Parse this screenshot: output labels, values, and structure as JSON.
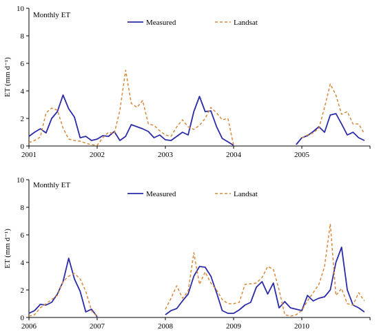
{
  "chart_data": [
    {
      "type": "line",
      "title": "Monthly ET",
      "ylabel": "ET (mm d⁻¹)",
      "xlabel": "",
      "ylim": [
        0,
        10
      ],
      "yticks": [
        0,
        2,
        4,
        6,
        8,
        10
      ],
      "xlim": [
        2001,
        2006
      ],
      "xticks": [
        "2001",
        "2002",
        "2003",
        "2004",
        "2005"
      ],
      "legend": "top-center",
      "series": [
        {
          "name": "Measured",
          "color": "#2a2aa8",
          "style": "solid",
          "segments": [
            [
              [
                2001.0,
                0.7
              ],
              [
                2001.083,
                1.0
              ],
              [
                2001.167,
                1.25
              ],
              [
                2001.25,
                0.95
              ],
              [
                2001.333,
                2.0
              ],
              [
                2001.417,
                2.5
              ],
              [
                2001.5,
                3.7
              ],
              [
                2001.583,
                2.7
              ],
              [
                2001.667,
                2.1
              ],
              [
                2001.75,
                0.6
              ],
              [
                2001.833,
                0.7
              ],
              [
                2001.917,
                0.4
              ],
              [
                2002.0,
                0.5
              ],
              [
                2002.083,
                0.75
              ],
              [
                2002.167,
                0.7
              ],
              [
                2002.25,
                1.05
              ],
              [
                2002.333,
                0.4
              ],
              [
                2002.417,
                0.7
              ],
              [
                2002.5,
                1.55
              ],
              [
                2002.583,
                1.4
              ],
              [
                2002.667,
                1.25
              ],
              [
                2002.75,
                1.05
              ],
              [
                2002.833,
                0.6
              ],
              [
                2002.917,
                0.8
              ],
              [
                2003.0,
                0.45
              ],
              [
                2003.083,
                0.4
              ],
              [
                2003.167,
                0.7
              ],
              [
                2003.25,
                1.0
              ],
              [
                2003.333,
                0.8
              ],
              [
                2003.417,
                2.5
              ],
              [
                2003.5,
                3.6
              ],
              [
                2003.583,
                2.5
              ],
              [
                2003.667,
                2.55
              ],
              [
                2003.75,
                1.4
              ],
              [
                2003.833,
                0.55
              ],
              [
                2003.917,
                0.3
              ],
              [
                2004.0,
                0.05
              ]
            ],
            [
              [
                2004.917,
                0.1
              ],
              [
                2005.0,
                0.6
              ],
              [
                2005.083,
                0.75
              ],
              [
                2005.167,
                1.05
              ],
              [
                2005.25,
                1.4
              ],
              [
                2005.333,
                1.0
              ],
              [
                2005.417,
                2.25
              ],
              [
                2005.5,
                2.35
              ],
              [
                2005.583,
                1.6
              ],
              [
                2005.667,
                0.8
              ],
              [
                2005.75,
                1.0
              ],
              [
                2005.833,
                0.6
              ],
              [
                2005.917,
                0.4
              ]
            ]
          ]
        },
        {
          "name": "Landsat",
          "color": "#d8883a",
          "style": "dashed",
          "segments": [
            [
              [
                2001.0,
                0.25
              ],
              [
                2001.083,
                0.4
              ],
              [
                2001.167,
                0.65
              ],
              [
                2001.25,
                2.4
              ],
              [
                2001.333,
                2.75
              ],
              [
                2001.417,
                2.6
              ],
              [
                2001.5,
                1.3
              ],
              [
                2001.583,
                0.5
              ],
              [
                2001.667,
                0.4
              ],
              [
                2001.75,
                0.35
              ],
              [
                2001.833,
                0.2
              ],
              [
                2001.917,
                0.1
              ],
              [
                2002.0,
                0.05
              ],
              [
                2002.083,
                0.6
              ],
              [
                2002.167,
                1.0
              ],
              [
                2002.25,
                0.9
              ],
              [
                2002.333,
                2.6
              ],
              [
                2002.417,
                5.5
              ],
              [
                2002.5,
                3.1
              ],
              [
                2002.583,
                2.8
              ],
              [
                2002.667,
                3.3
              ],
              [
                2002.75,
                1.6
              ],
              [
                2002.833,
                1.5
              ],
              [
                2002.917,
                1.1
              ],
              [
                2003.0,
                0.8
              ],
              [
                2003.083,
                0.7
              ],
              [
                2003.167,
                1.4
              ],
              [
                2003.25,
                1.9
              ],
              [
                2003.333,
                1.4
              ],
              [
                2003.417,
                1.2
              ],
              [
                2003.5,
                1.5
              ],
              [
                2003.583,
                2.0
              ],
              [
                2003.667,
                2.8
              ],
              [
                2003.75,
                2.4
              ],
              [
                2003.833,
                1.9
              ],
              [
                2003.917,
                2.0
              ],
              [
                2004.0,
                0.05
              ]
            ],
            [
              [
                2005.0,
                0.6
              ],
              [
                2005.083,
                0.8
              ],
              [
                2005.167,
                0.95
              ],
              [
                2005.25,
                1.3
              ],
              [
                2005.333,
                2.8
              ],
              [
                2005.417,
                4.5
              ],
              [
                2005.5,
                3.7
              ],
              [
                2005.583,
                2.3
              ],
              [
                2005.667,
                2.5
              ],
              [
                2005.75,
                1.6
              ],
              [
                2005.833,
                1.6
              ],
              [
                2005.917,
                0.9
              ]
            ]
          ]
        }
      ]
    },
    {
      "type": "line",
      "title": "Monthly ET",
      "ylabel": "ET (mm d⁻¹)",
      "xlabel": "",
      "ylim": [
        0,
        10
      ],
      "yticks": [
        0,
        2,
        4,
        6,
        8,
        10
      ],
      "xlim": [
        2006,
        2011
      ],
      "xticks": [
        "2006",
        "2007",
        "2008",
        "2009",
        "2010"
      ],
      "legend": "top-center",
      "series": [
        {
          "name": "Measured",
          "color": "#2a2aa8",
          "style": "solid",
          "segments": [
            [
              [
                2006.0,
                0.3
              ],
              [
                2006.083,
                0.5
              ],
              [
                2006.167,
                0.95
              ],
              [
                2006.25,
                0.9
              ],
              [
                2006.333,
                1.1
              ],
              [
                2006.417,
                1.7
              ],
              [
                2006.5,
                2.6
              ],
              [
                2006.583,
                4.3
              ],
              [
                2006.667,
                2.8
              ],
              [
                2006.75,
                1.9
              ],
              [
                2006.833,
                0.4
              ],
              [
                2006.917,
                0.6
              ],
              [
                2007.0,
                0.05
              ]
            ],
            [
              [
                2008.0,
                0.2
              ],
              [
                2008.083,
                0.5
              ],
              [
                2008.167,
                0.65
              ],
              [
                2008.25,
                1.2
              ],
              [
                2008.333,
                1.7
              ],
              [
                2008.417,
                3.0
              ],
              [
                2008.5,
                3.7
              ],
              [
                2008.583,
                3.65
              ],
              [
                2008.667,
                3.0
              ],
              [
                2008.75,
                1.8
              ],
              [
                2008.833,
                0.5
              ],
              [
                2008.917,
                0.3
              ],
              [
                2009.0,
                0.3
              ],
              [
                2009.083,
                0.55
              ],
              [
                2009.167,
                0.9
              ],
              [
                2009.25,
                1.1
              ],
              [
                2009.333,
                2.2
              ],
              [
                2009.417,
                2.6
              ],
              [
                2009.5,
                1.7
              ],
              [
                2009.583,
                2.5
              ],
              [
                2009.667,
                0.7
              ],
              [
                2009.75,
                1.15
              ],
              [
                2009.833,
                0.7
              ],
              [
                2009.917,
                0.6
              ],
              [
                2010.0,
                0.5
              ],
              [
                2010.083,
                1.6
              ],
              [
                2010.167,
                1.2
              ],
              [
                2010.25,
                1.4
              ],
              [
                2010.333,
                1.5
              ],
              [
                2010.417,
                2.0
              ],
              [
                2010.5,
                4.0
              ],
              [
                2010.583,
                5.1
              ],
              [
                2010.667,
                2.0
              ],
              [
                2010.75,
                0.9
              ],
              [
                2010.833,
                0.7
              ],
              [
                2010.917,
                0.4
              ]
            ]
          ]
        },
        {
          "name": "Landsat",
          "color": "#d8883a",
          "style": "dashed",
          "segments": [
            [
              [
                2006.0,
                0.1
              ],
              [
                2006.083,
                0.2
              ],
              [
                2006.167,
                0.7
              ],
              [
                2006.25,
                1.0
              ],
              [
                2006.333,
                1.3
              ],
              [
                2006.417,
                1.6
              ],
              [
                2006.5,
                2.6
              ],
              [
                2006.583,
                3.0
              ],
              [
                2006.667,
                3.2
              ],
              [
                2006.75,
                2.8
              ],
              [
                2006.833,
                1.9
              ],
              [
                2006.917,
                0.5
              ],
              [
                2007.0,
                0.05
              ]
            ],
            [
              [
                2008.0,
                0.6
              ],
              [
                2008.083,
                1.4
              ],
              [
                2008.167,
                2.3
              ],
              [
                2008.25,
                1.4
              ],
              [
                2008.333,
                1.9
              ],
              [
                2008.417,
                4.7
              ],
              [
                2008.5,
                2.4
              ],
              [
                2008.583,
                3.3
              ],
              [
                2008.667,
                2.5
              ],
              [
                2008.75,
                2.0
              ],
              [
                2008.833,
                1.3
              ],
              [
                2008.917,
                1.0
              ],
              [
                2009.0,
                1.0
              ],
              [
                2009.083,
                1.1
              ],
              [
                2009.167,
                2.4
              ],
              [
                2009.25,
                2.45
              ],
              [
                2009.333,
                2.5
              ],
              [
                2009.417,
                2.9
              ],
              [
                2009.5,
                3.7
              ],
              [
                2009.583,
                3.5
              ],
              [
                2009.667,
                2.0
              ],
              [
                2009.75,
                0.2
              ],
              [
                2009.833,
                0.1
              ],
              [
                2009.917,
                0.2
              ],
              [
                2010.0,
                0.5
              ],
              [
                2010.083,
                1.2
              ],
              [
                2010.167,
                1.8
              ],
              [
                2010.25,
                2.4
              ],
              [
                2010.333,
                3.7
              ],
              [
                2010.417,
                6.8
              ],
              [
                2010.5,
                1.6
              ],
              [
                2010.583,
                2.1
              ],
              [
                2010.667,
                1.0
              ],
              [
                2010.75,
                0.9
              ],
              [
                2010.833,
                1.8
              ],
              [
                2010.917,
                1.2
              ]
            ]
          ]
        }
      ]
    }
  ]
}
